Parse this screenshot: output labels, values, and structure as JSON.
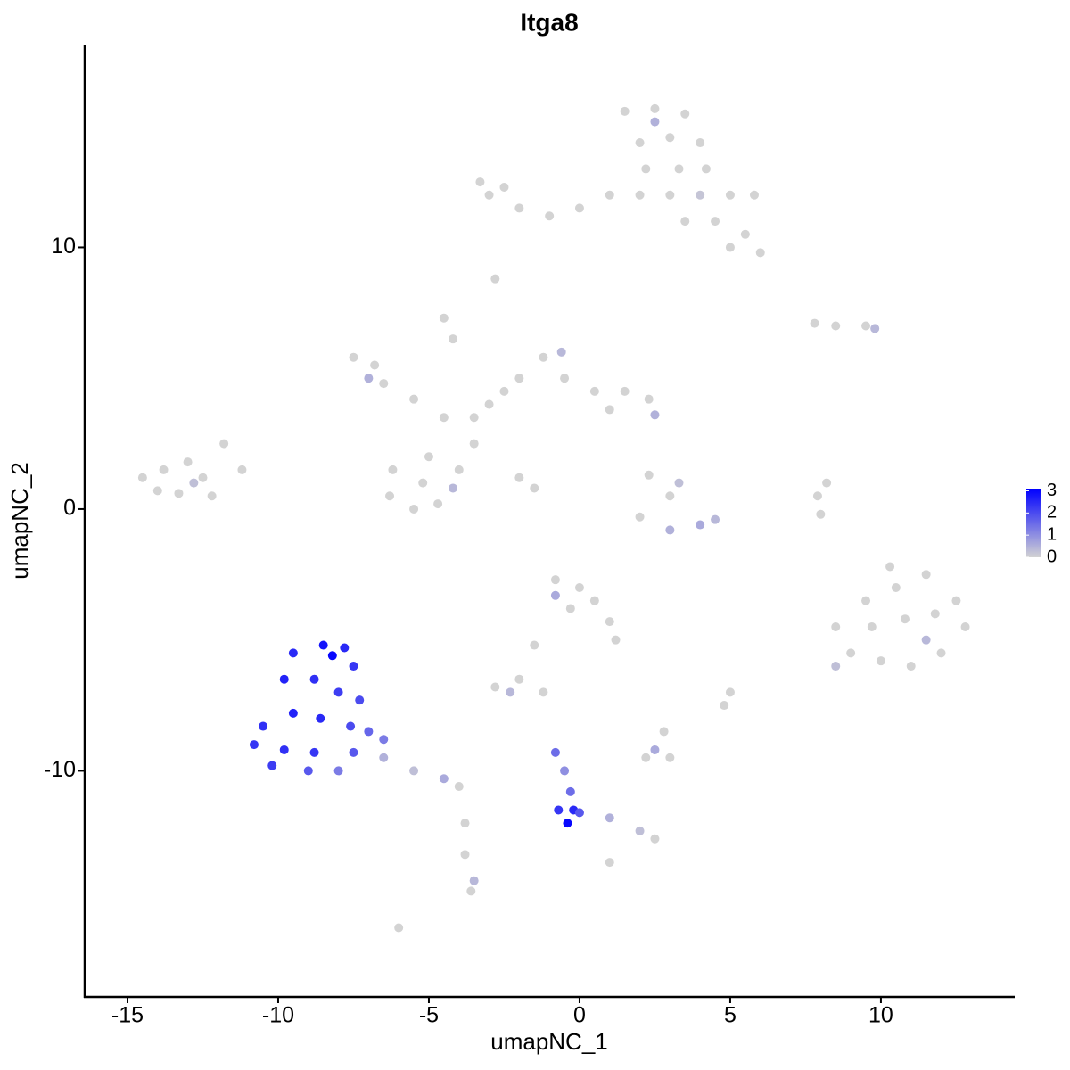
{
  "chart_data": {
    "type": "scatter",
    "title": "Itga8",
    "xlabel": "umapNC_1",
    "ylabel": "umapNC_2",
    "xlim": [
      -16.42,
      14.44
    ],
    "ylim": [
      -18.64,
      17.75
    ],
    "xticks": [
      -15,
      -10,
      -5,
      0,
      5,
      10
    ],
    "yticks": [
      -10,
      0,
      10
    ],
    "low_color": "#d3d3d3",
    "high_color": "#0000ff",
    "colorbar_lim": [
      0,
      3.1
    ],
    "colorbar_ticks": [
      0,
      1,
      2,
      3
    ],
    "x": [
      1.5,
      2.5,
      3.5,
      2,
      3,
      4,
      2.2,
      3.3,
      4.2,
      2,
      3,
      4,
      5,
      5.8,
      3.5,
      4.5,
      5.5,
      6,
      5,
      1,
      0,
      -1,
      -2,
      -3,
      -3.3,
      -2.5,
      2.5,
      -2.8,
      -7.5,
      -6.8,
      -6.5,
      -7,
      -5.5,
      -4.5,
      -3.5,
      -3,
      -2.5,
      -2,
      -1.2,
      -0.6,
      -0.5,
      0.5,
      1.5,
      2.3,
      2.5,
      1,
      -4.2,
      -4.5,
      -4,
      -3.5,
      -5,
      -6.2,
      -6.3,
      -5.5,
      -4.7,
      -5.2,
      -4.2,
      -2,
      -1.5,
      -14.5,
      -13.8,
      -13,
      -12.5,
      -13.3,
      -12.2,
      -14,
      -11.8,
      -11.2,
      -12.8,
      2.3,
      3,
      2,
      3,
      4,
      4.5,
      3.3,
      7.9,
      8,
      8.2,
      8.5,
      9.5,
      7.8,
      9.8,
      8.5,
      9.5,
      10.5,
      11.5,
      12.5,
      12.8,
      12,
      11,
      10,
      9,
      9.7,
      10.8,
      11.8,
      10.3,
      8.5,
      11.5,
      -0.8,
      0,
      0.5,
      -0.3,
      1,
      1.2,
      -0.8,
      -1.5,
      -2,
      -2.8,
      -2.3,
      -1.2,
      5,
      4.8,
      2.8,
      2.2,
      3,
      2.5,
      -6.5,
      -5.5,
      -4.5,
      -4,
      -3.8,
      -3.8,
      -3.6,
      -3.5,
      -6,
      1,
      -0.8,
      -0.5,
      -0.3,
      -0.2,
      -0.4,
      0,
      1,
      2,
      2.5,
      -0.7,
      -9.5,
      -8.5,
      -7.8,
      -7.5,
      -9.8,
      -8.8,
      -8,
      -7.3,
      -10.5,
      -9.5,
      -8.6,
      -7.6,
      -10.8,
      -9.8,
      -8.8,
      -7.5,
      -10.2,
      -9,
      -8,
      -7,
      -6.5,
      -8.2
    ],
    "y": [
      15.2,
      15.3,
      15.1,
      14,
      14.2,
      14,
      13,
      13,
      13,
      12,
      12,
      12,
      12,
      12,
      11,
      11,
      10.5,
      9.8,
      10,
      12,
      11.5,
      11.2,
      11.5,
      12,
      12.5,
      12.3,
      14.8,
      8.8,
      5.8,
      5.5,
      4.8,
      5,
      4.2,
      3.5,
      3.5,
      4,
      4.5,
      5,
      5.8,
      6,
      5,
      4.5,
      4.5,
      4.2,
      3.6,
      3.8,
      6.5,
      7.3,
      1.5,
      2.5,
      2,
      1.5,
      0.5,
      0,
      0.2,
      1,
      0.8,
      1.2,
      0.8,
      1.2,
      1.5,
      1.8,
      1.2,
      0.6,
      0.5,
      0.7,
      2.5,
      1.5,
      1,
      1.3,
      0.5,
      -0.3,
      -0.8,
      -0.6,
      -0.4,
      1,
      0.5,
      -0.2,
      1,
      7,
      7,
      7.1,
      6.9,
      -4.5,
      -3.5,
      -3,
      -2.5,
      -3.5,
      -4.5,
      -5.5,
      -6,
      -5.8,
      -5.5,
      -4.5,
      -4.2,
      -4,
      -2.2,
      -6,
      -5,
      -2.7,
      -3,
      -3.5,
      -3.8,
      -4.3,
      -5,
      -3.3,
      -5.2,
      -6.5,
      -6.8,
      -7,
      -7,
      -7,
      -7.5,
      -8.5,
      -9.5,
      -9.5,
      -9.2,
      -9.5,
      -10,
      -10.3,
      -10.6,
      -12,
      -13.2,
      -14.6,
      -14.2,
      -16,
      -13.5,
      -9.3,
      -10,
      -10.8,
      -11.5,
      -12,
      -11.6,
      -11.8,
      -12.3,
      -12.6,
      -11.5,
      -5.5,
      -5.2,
      -5.3,
      -6,
      -6.5,
      -6.5,
      -7,
      -7.3,
      -8.3,
      -7.8,
      -8,
      -8.3,
      -9,
      -9.2,
      -9.3,
      -9.3,
      -9.8,
      -10,
      -10,
      -8.5,
      -8.8,
      -5.6
    ],
    "values": [
      0,
      0,
      0,
      0,
      0,
      0,
      0,
      0,
      0,
      0,
      0,
      0.2,
      0,
      0,
      0,
      0,
      0,
      0,
      0,
      0,
      0,
      0,
      0,
      0,
      0,
      0,
      0.5,
      0,
      0,
      0,
      0,
      0.5,
      0,
      0,
      0,
      0,
      0,
      0,
      0,
      0.4,
      0,
      0,
      0,
      0,
      0.5,
      0,
      0,
      0,
      0,
      0,
      0,
      0,
      0,
      0,
      0,
      0,
      0.4,
      0,
      0,
      0,
      0,
      0,
      0,
      0,
      0,
      0,
      0,
      0,
      0.3,
      0,
      0,
      0,
      0.5,
      0.6,
      0.4,
      0.3,
      0,
      0,
      0,
      0,
      0,
      0,
      0.4,
      0,
      0,
      0,
      0,
      0,
      0,
      0,
      0,
      0,
      0,
      0,
      0,
      0,
      0,
      0.3,
      0.4,
      0,
      0,
      0,
      0,
      0,
      0,
      0.6,
      0,
      0,
      0,
      0.4,
      0,
      0,
      0,
      0,
      0,
      0,
      0.6,
      0.5,
      0.3,
      0.6,
      0,
      0,
      0,
      0,
      0.4,
      0,
      0,
      1.5,
      1,
      1.5,
      2.5,
      3,
      1.8,
      0.5,
      0.3,
      0,
      2.3,
      2.5,
      2.8,
      2.5,
      2.3,
      2.6,
      2.4,
      2.2,
      2,
      2.4,
      2.6,
      2.5,
      2,
      2.3,
      2.4,
      2.3,
      1.8,
      2.2,
      1.8,
      1.3,
      1.6,
      1.3,
      3
    ]
  }
}
